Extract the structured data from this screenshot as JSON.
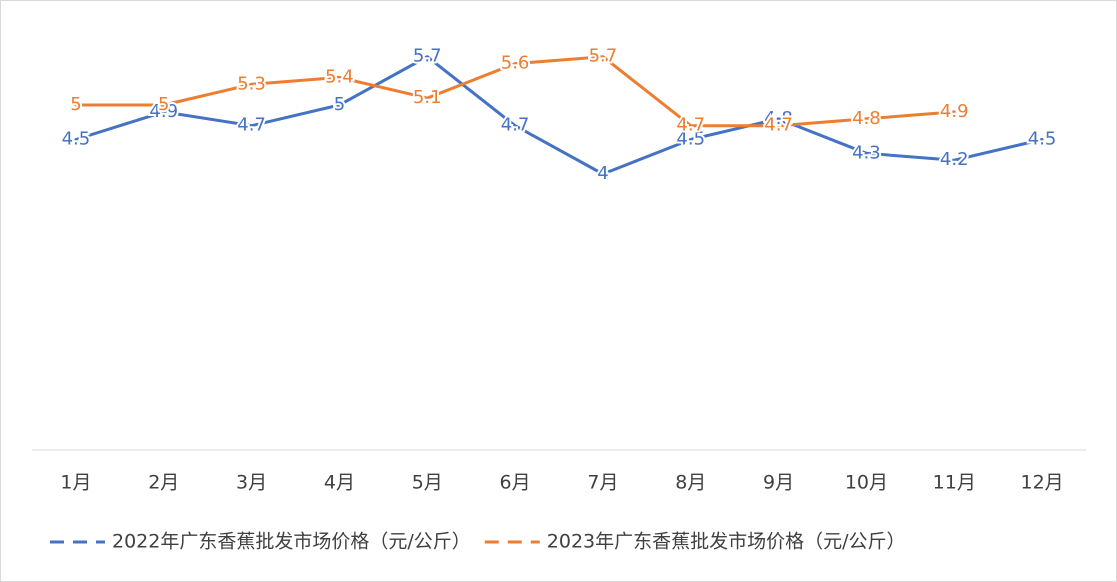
{
  "chart_data": {
    "type": "line",
    "categories": [
      "1月",
      "2月",
      "3月",
      "4月",
      "5月",
      "6月",
      "7月",
      "8月",
      "9月",
      "10月",
      "11月",
      "12月"
    ],
    "series": [
      {
        "name": "2022年广东香蕉批发市场价格（元/公斤）",
        "color": "#4472c4",
        "values": [
          4.5,
          4.9,
          4.7,
          5,
          5.7,
          4.7,
          4,
          4.5,
          4.8,
          4.3,
          4.2,
          4.5
        ]
      },
      {
        "name": "2023年广东香蕉批发市场价格（元/公斤）",
        "color": "#ed7d31",
        "values": [
          5,
          5,
          5.3,
          5.4,
          5.1,
          5.6,
          5.7,
          4.7,
          4.7,
          4.8,
          4.9,
          null
        ]
      }
    ],
    "ylim": [
      0,
      6
    ],
    "legend": "bottom"
  }
}
